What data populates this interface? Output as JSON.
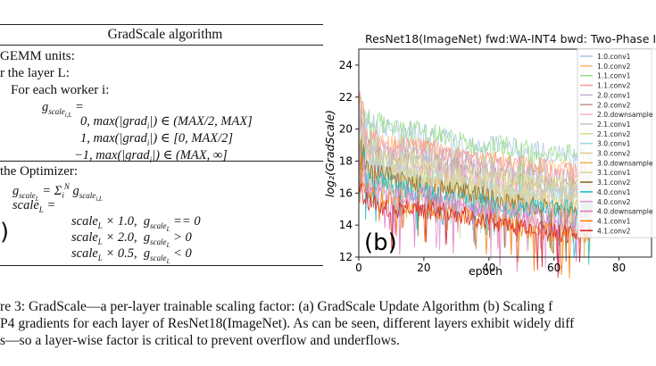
{
  "algorithm": {
    "title": "GradScale algorithm",
    "lines": [
      "GEMM units:",
      "r the layer L:",
      "For each worker i:"
    ],
    "worker_formula": [
      "g_{scale_{i,L}} =",
      "0, max(|grad_i|) ∈ (MAX/2, MAX]",
      "1, max(|grad_i|) ∈ [0, MAX/2]",
      "−1, max(|grad_i|) ∈ (MAX, ∞]"
    ],
    "optimizer_heading": "the Optimizer:",
    "optimizer_formula": [
      "g_{scale_L} = Σ_i^N g_{scale_{i,L}}",
      "scale_L =",
      "scale_L × 1.0,  g_{scale_L} == 0",
      "scale_L × 2.0,  g_{scale_L} > 0",
      "scale_L × 0.5,  g_{scale_L} < 0"
    ],
    "panel_label": ")"
  },
  "figure_b": {
    "panel_label": "(b)",
    "title": "ResNet18(ImageNet) fwd:WA-INT4 bwd: Two-Phase I",
    "xlabel": "epoch",
    "ylabel": "log₂(GradScale)",
    "xticks": [
      "0",
      "20",
      "40",
      "60",
      "80"
    ],
    "yticks": [
      "12",
      "14",
      "16",
      "18",
      "20",
      "22",
      "24"
    ]
  },
  "chart_data": {
    "type": "line",
    "title": "ResNet18(ImageNet) fwd:WA-INT4 bwd: Two-Phase I",
    "xlabel": "epoch",
    "ylabel": "log₂(GradScale)",
    "xlim": [
      0,
      90
    ],
    "ylim": [
      12,
      25
    ],
    "xticks": [
      0,
      20,
      40,
      60,
      80
    ],
    "yticks": [
      12,
      14,
      16,
      18,
      20,
      22,
      24
    ],
    "legend_position": "right",
    "grid": false,
    "x": [
      0,
      2,
      10,
      20,
      35,
      45,
      60,
      72
    ],
    "series": [
      {
        "name": "1.0.conv1",
        "color": "#aec7e8",
        "values": [
          21,
          20.5,
          20,
          20,
          19,
          19,
          18.5,
          18.5
        ]
      },
      {
        "name": "1.0.conv2",
        "color": "#ffbb78",
        "values": [
          20,
          19.5,
          19,
          19,
          18,
          18,
          17.5,
          17.5
        ]
      },
      {
        "name": "1.1.conv1",
        "color": "#98df8a",
        "values": [
          22,
          21,
          20,
          20,
          19,
          19,
          18.5,
          18.5
        ]
      },
      {
        "name": "1.1.conv2",
        "color": "#ff9896",
        "values": [
          21,
          20,
          19,
          19,
          18,
          18,
          17.5,
          17.5
        ]
      },
      {
        "name": "2.0.conv1",
        "color": "#c5b0d5",
        "values": [
          20,
          19,
          18.5,
          18.5,
          18,
          17.5,
          17,
          17
        ]
      },
      {
        "name": "2.0.conv2",
        "color": "#c49c94",
        "values": [
          19.5,
          19,
          18,
          18,
          17.5,
          17,
          16.5,
          16.5
        ]
      },
      {
        "name": "2.0.downsample",
        "color": "#f7b6d2",
        "values": [
          18.5,
          18,
          17.5,
          17.5,
          17,
          16.5,
          16,
          16
        ]
      },
      {
        "name": "2.1.conv1",
        "color": "#c7c7c7",
        "values": [
          19.5,
          19,
          18,
          18,
          17.5,
          17,
          16.5,
          16.5
        ]
      },
      {
        "name": "2.1.conv2",
        "color": "#dbdb8d",
        "values": [
          19,
          18.5,
          18,
          18,
          17,
          17,
          16.5,
          16.5
        ]
      },
      {
        "name": "3.0.conv1",
        "color": "#9edae5",
        "values": [
          18.5,
          18,
          17.5,
          17,
          16.5,
          16,
          16,
          16
        ]
      },
      {
        "name": "3.0.conv2",
        "color": "#e7cb94",
        "values": [
          18.5,
          18,
          17.5,
          17,
          16.5,
          16,
          15.5,
          15.5
        ]
      },
      {
        "name": "3.0.downsample",
        "color": "#e7ba52",
        "values": [
          17.5,
          17,
          16.5,
          16.5,
          16,
          15.5,
          15,
          15
        ]
      },
      {
        "name": "3.1.conv1",
        "color": "#cedb9c",
        "values": [
          18,
          17.5,
          17,
          17,
          16.5,
          16,
          15.5,
          15.5
        ]
      },
      {
        "name": "3.1.conv2",
        "color": "#8c6d31",
        "values": [
          18,
          17.5,
          17,
          16.5,
          16,
          15.5,
          15,
          15
        ]
      },
      {
        "name": "4.0.conv1",
        "color": "#17becf",
        "values": [
          17.5,
          17,
          16.5,
          16,
          15.5,
          15,
          15,
          15
        ]
      },
      {
        "name": "4.0.conv2",
        "color": "#de9ed6",
        "values": [
          17,
          16.5,
          16,
          16,
          15,
          15,
          14.5,
          14.5
        ]
      },
      {
        "name": "4.0.downsample",
        "color": "#e377c2",
        "values": [
          16.5,
          16,
          15.5,
          15.5,
          15,
          14.5,
          14,
          14
        ]
      },
      {
        "name": "4.1.conv1",
        "color": "#ff7f0e",
        "values": [
          17,
          16,
          15.5,
          15,
          14.5,
          14,
          13.5,
          13.5
        ]
      },
      {
        "name": "4.1.conv2",
        "color": "#d62728",
        "values": [
          16.5,
          15.5,
          15,
          15,
          14.5,
          14,
          13.5,
          13.5
        ]
      }
    ]
  },
  "caption": {
    "lines": [
      "re 3: GradScale—a per-layer trainable scaling factor: (a) GradScale Update Algorithm (b) Scaling f",
      "P4 gradients for each layer of ResNet18(ImageNet). As can be seen, different layers exhibit widely diff",
      "s—so a layer-wise factor is critical to prevent overflow and underflows."
    ]
  }
}
